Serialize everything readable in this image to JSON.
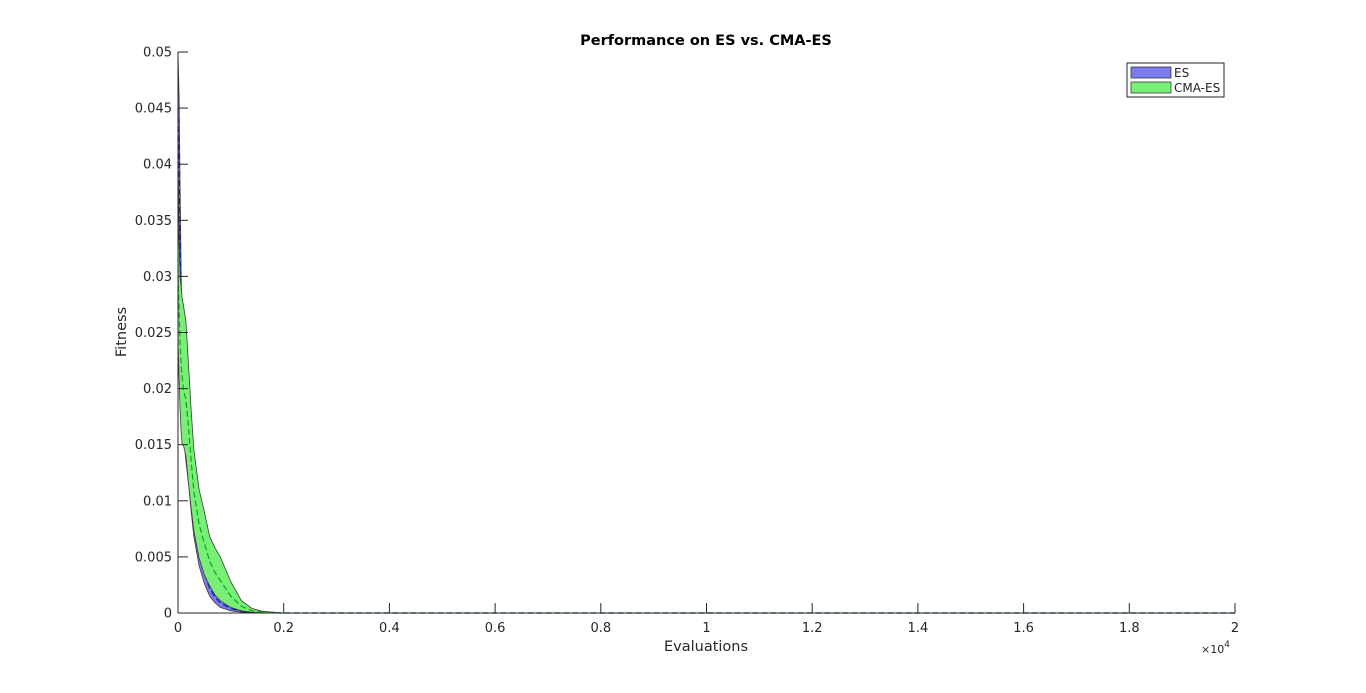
{
  "chart_data": {
    "type": "area",
    "title": "Performance on ES vs. CMA-ES",
    "xlabel": "Evaluations",
    "ylabel": "Fitness",
    "x_exponent_label": "×10",
    "x_exponent_power": "4",
    "x_scale": 10000,
    "xlim": [
      0,
      20000
    ],
    "ylim": [
      0,
      0.05
    ],
    "xticks": [
      0,
      2000,
      4000,
      6000,
      8000,
      10000,
      12000,
      14000,
      16000,
      18000,
      20000
    ],
    "xtick_labels": [
      "0",
      "0.2",
      "0.4",
      "0.6",
      "0.8",
      "1",
      "1.2",
      "1.4",
      "1.6",
      "1.8",
      "2"
    ],
    "yticks": [
      0,
      0.005,
      0.01,
      0.015,
      0.02,
      0.025,
      0.03,
      0.035,
      0.04,
      0.045,
      0.05
    ],
    "ytick_labels": [
      "0",
      "0.005",
      "0.01",
      "0.015",
      "0.02",
      "0.025",
      "0.03",
      "0.035",
      "0.04",
      "0.045",
      "0.05"
    ],
    "grid": false,
    "legend_position": "top-right",
    "series": [
      {
        "name": "ES",
        "color": "#7b7bf0",
        "mean_color": "#1a1aa8",
        "x": [
          0,
          20,
          40,
          60,
          80,
          100,
          150,
          200,
          250,
          300,
          400,
          500,
          600,
          700,
          800,
          1000,
          1200,
          1400,
          1600,
          2000,
          20000
        ],
        "upper": [
          0.05,
          0.046,
          0.038,
          0.03,
          0.024,
          0.02,
          0.017,
          0.016,
          0.0135,
          0.011,
          0.0075,
          0.0048,
          0.0032,
          0.0021,
          0.0014,
          0.0006,
          0.00025,
          0.0001,
          4e-05,
          0.0,
          0.0
        ],
        "mean": [
          0.045,
          0.04,
          0.033,
          0.026,
          0.021,
          0.018,
          0.015,
          0.013,
          0.0108,
          0.0085,
          0.0056,
          0.0035,
          0.0022,
          0.0014,
          0.0009,
          0.0004,
          0.00015,
          6e-05,
          2e-05,
          0.0,
          0.0
        ],
        "lower": [
          0.04,
          0.034,
          0.028,
          0.022,
          0.018,
          0.016,
          0.0135,
          0.0115,
          0.009,
          0.0068,
          0.0042,
          0.0026,
          0.0015,
          0.0009,
          0.0005,
          0.0002,
          8e-05,
          3e-05,
          1e-05,
          0.0,
          0.0
        ]
      },
      {
        "name": "CMA-ES",
        "color": "#78f078",
        "mean_color": "#13a313",
        "x": [
          0,
          20,
          40,
          60,
          80,
          100,
          150,
          200,
          250,
          300,
          400,
          500,
          600,
          700,
          800,
          1000,
          1200,
          1400,
          1600,
          2000,
          20000
        ],
        "upper": [
          0.035,
          0.033,
          0.03,
          0.029,
          0.028,
          0.0275,
          0.026,
          0.022,
          0.018,
          0.0145,
          0.011,
          0.009,
          0.0068,
          0.0058,
          0.005,
          0.0028,
          0.0011,
          0.0004,
          0.00015,
          0.0,
          0.0
        ],
        "mean": [
          0.03,
          0.027,
          0.024,
          0.022,
          0.021,
          0.02,
          0.019,
          0.0165,
          0.0135,
          0.0108,
          0.0079,
          0.0062,
          0.0046,
          0.0036,
          0.0029,
          0.0015,
          0.0006,
          0.0002,
          8e-05,
          0.0,
          0.0
        ],
        "lower": [
          0.024,
          0.021,
          0.018,
          0.016,
          0.015,
          0.015,
          0.014,
          0.0115,
          0.0093,
          0.0073,
          0.0049,
          0.0034,
          0.0024,
          0.0016,
          0.0011,
          0.0005,
          0.0002,
          7e-05,
          3e-05,
          0.0,
          0.0
        ]
      }
    ]
  }
}
